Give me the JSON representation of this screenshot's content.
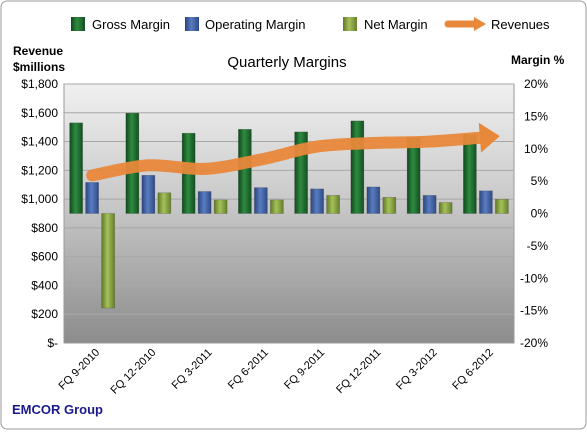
{
  "chart_data": {
    "type": "bar",
    "title": "Quarterly Margins",
    "company": "EMCOR Group",
    "left_axis_label": [
      "Revenue",
      "$millions"
    ],
    "right_axis_label": "Margin %",
    "categories": [
      "FQ 9-2010",
      "FQ 12-2010",
      "FQ 3-2011",
      "FQ 6-2011",
      "FQ 9-2011",
      "FQ 12-2011",
      "FQ 3-2012",
      "FQ 6-2012"
    ],
    "left_axis": {
      "min": 0,
      "max": 1800,
      "step": 200,
      "tick_labels": [
        "$-",
        "$200",
        "$400",
        "$600",
        "$800",
        "$1,000",
        "$1,200",
        "$1,400",
        "$1,600",
        "$1,800"
      ]
    },
    "right_axis": {
      "min": -20,
      "max": 20,
      "step": 5,
      "tick_labels": [
        "-20%",
        "-15%",
        "-10%",
        "-5%",
        "0%",
        "5%",
        "10%",
        "15%",
        "20%"
      ]
    },
    "series": [
      {
        "name": "Gross Margin",
        "axis": "right",
        "kind": "bar",
        "color": "#1f6b2e",
        "values": [
          14.0,
          15.5,
          12.4,
          13.0,
          12.6,
          14.3,
          11.7,
          12.2
        ]
      },
      {
        "name": "Operating Margin",
        "axis": "right",
        "kind": "bar",
        "color": "#3e5fa3",
        "values": [
          4.8,
          5.9,
          3.4,
          4.0,
          3.8,
          4.1,
          2.8,
          3.5
        ]
      },
      {
        "name": "Net Margin",
        "axis": "right",
        "kind": "bar",
        "color": "#8aa83e",
        "values": [
          -14.6,
          3.2,
          2.1,
          2.1,
          2.8,
          2.5,
          1.7,
          2.2
        ]
      },
      {
        "name": "Revenues",
        "axis": "left",
        "kind": "line",
        "color": "#e8883a",
        "values": [
          1165,
          1235,
          1210,
          1275,
          1365,
          1390,
          1400,
          1430
        ]
      }
    ],
    "grid": true,
    "legend": "top"
  }
}
